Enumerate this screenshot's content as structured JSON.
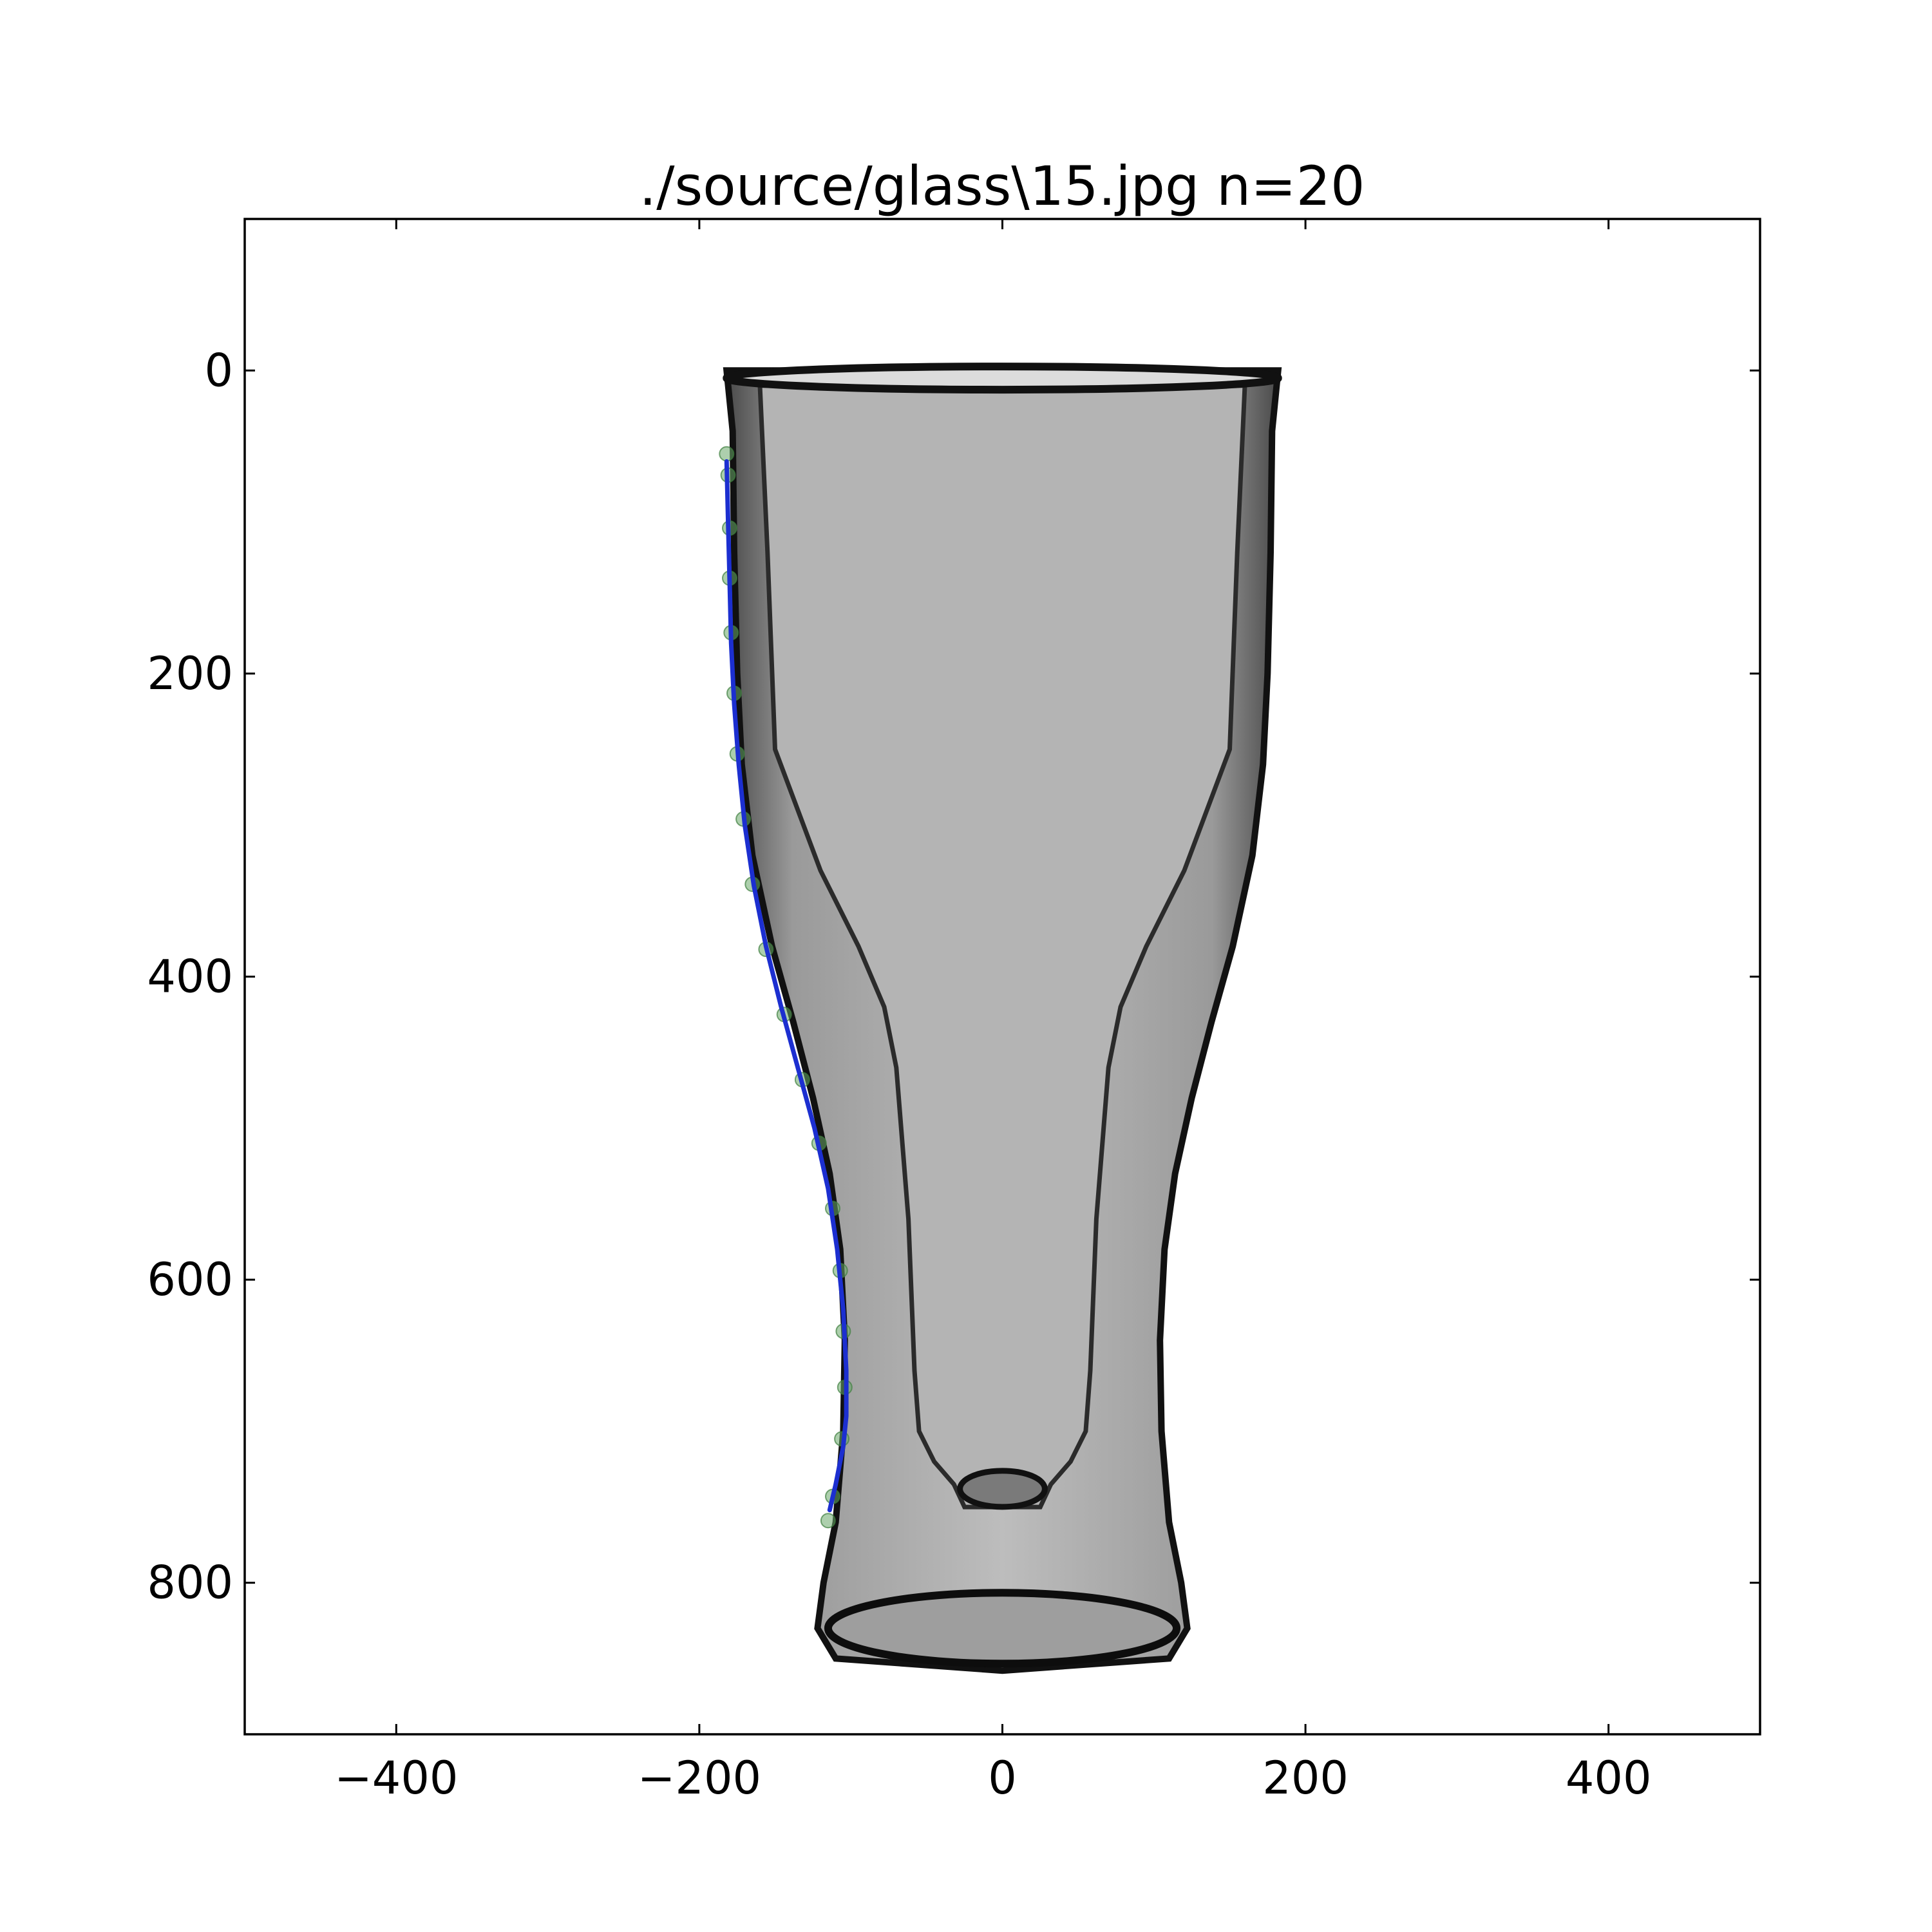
{
  "chart_data": {
    "type": "scatter",
    "title": "./source/glass\\15.jpg n=20",
    "xlabel": "",
    "ylabel": "",
    "xlim": [
      -500,
      500
    ],
    "ylim": [
      900,
      -100
    ],
    "y_inverted": true,
    "grid": false,
    "x_ticks": [
      -400,
      -200,
      0,
      200,
      400
    ],
    "x_tick_labels": [
      "−400",
      "−200",
      "0",
      "200",
      "400"
    ],
    "y_ticks": [
      0,
      200,
      400,
      600,
      800
    ],
    "y_tick_labels": [
      "0",
      "200",
      "400",
      "600",
      "800"
    ],
    "series": [
      {
        "kind": "points",
        "color": "#6aa86a",
        "x": [
          -182,
          -181,
          -180,
          -180,
          -179,
          -177,
          -175,
          -171,
          -165,
          -156,
          -144,
          -132,
          -121,
          -112,
          -107,
          -105,
          -104,
          -106,
          -112,
          -115
        ],
        "y": [
          55,
          69,
          104,
          137,
          173,
          213,
          253,
          296,
          339,
          382,
          425,
          468,
          510,
          553,
          594,
          634,
          671,
          705,
          743,
          759
        ]
      },
      {
        "kind": "curve",
        "color": "#1c2fd0",
        "x": [
          -182,
          -181,
          -180,
          -179,
          -177,
          -174,
          -170,
          -164,
          -156,
          -146,
          -135,
          -124,
          -115,
          -109,
          -105,
          -103,
          -103,
          -105,
          -110,
          -114
        ],
        "y": [
          60,
          100,
          140,
          180,
          220,
          260,
          300,
          340,
          380,
          420,
          460,
          500,
          540,
          580,
          620,
          660,
          690,
          710,
          735,
          752
        ]
      }
    ],
    "background_image": {
      "subject": "glass-photo",
      "x_range": [
        -182,
        182
      ],
      "y_range": [
        0,
        858
      ],
      "tone": "grayscale"
    }
  }
}
